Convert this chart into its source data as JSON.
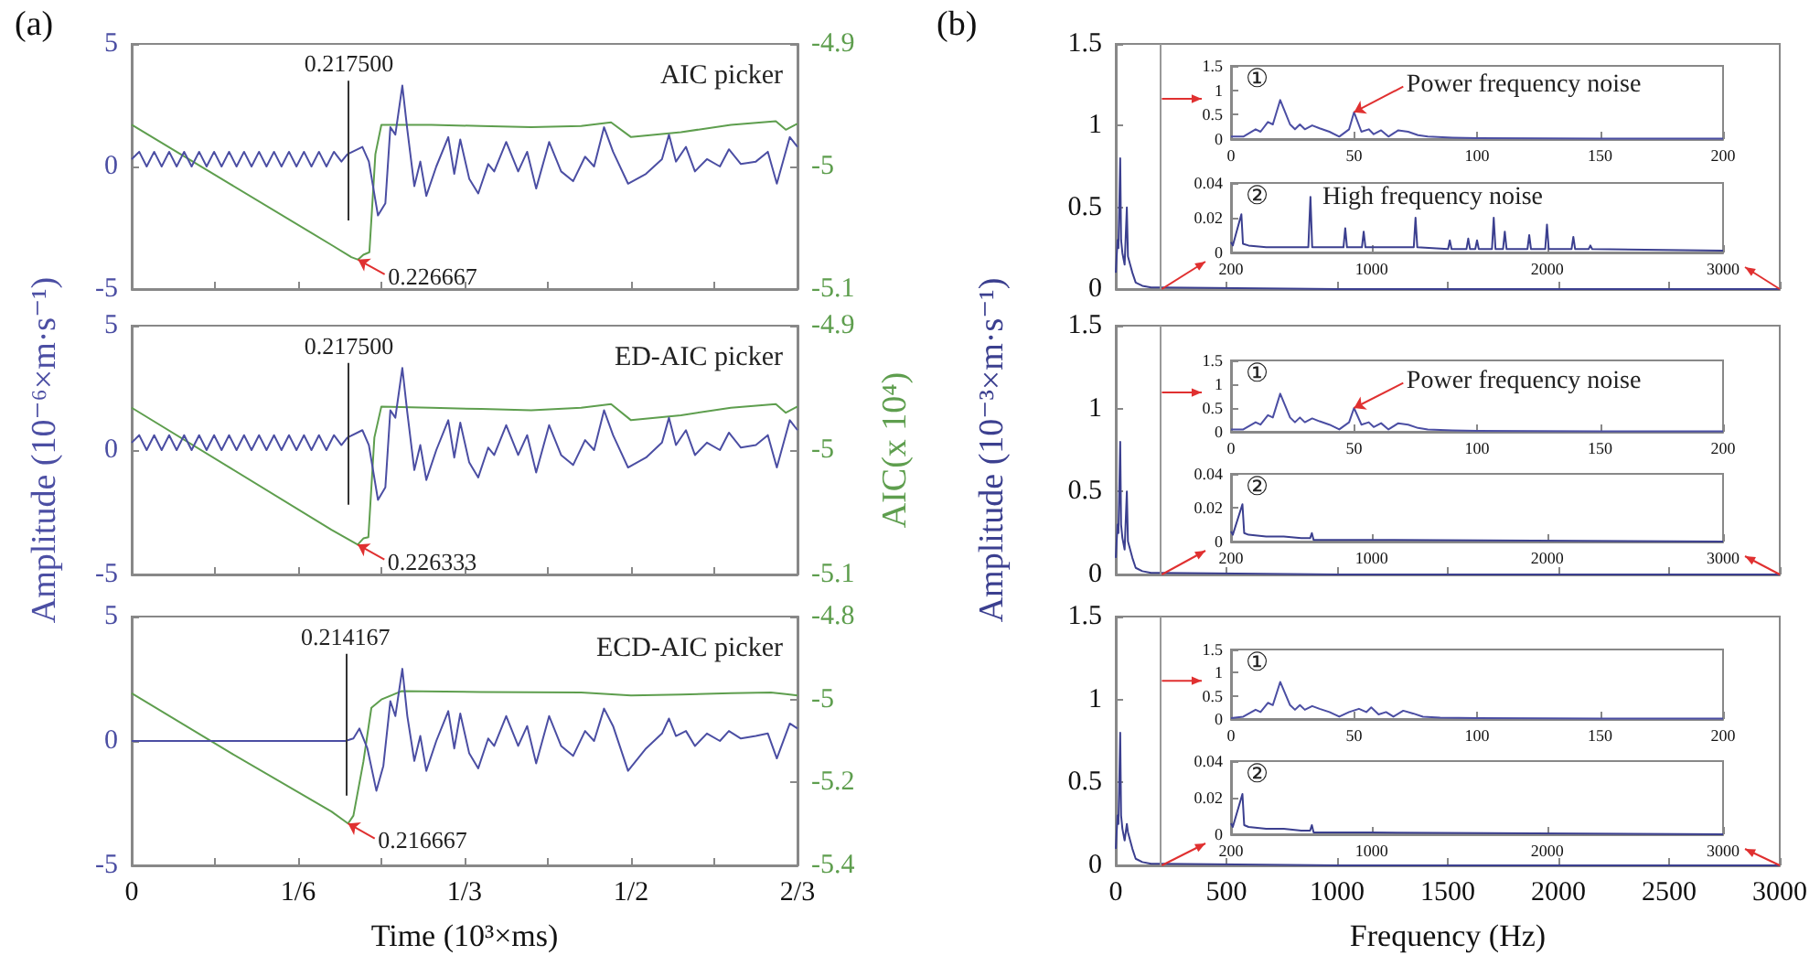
{
  "chart_data": [
    {
      "type": "line",
      "title": "(a)",
      "marker": "none",
      "tick_labels": "y",
      "series": [
        {
          "color": "#4b4ea3",
          "x": [
            0,
            0.0075,
            0.015,
            0.0225,
            0.03,
            0.0375,
            0.045,
            0.0525,
            0.06,
            0.0675,
            0.075,
            0.0825,
            0.09,
            0.0975,
            0.105,
            0.1125,
            0.12,
            0.1275,
            0.135,
            0.1425,
            0.15,
            0.1575,
            0.165,
            0.1725,
            0.18,
            0.1875,
            0.195,
            0.2025,
            0.21,
            0.216,
            0.231,
            0.2375,
            0.2466,
            0.254,
            0.259,
            0.264,
            0.271,
            0.276,
            0.283,
            0.289,
            0.295,
            0.305,
            0.317,
            0.323,
            0.329,
            0.338,
            0.347,
            0.357,
            0.363,
            0.375,
            0.387,
            0.396,
            0.405,
            0.418,
            0.43,
            0.442,
            0.454,
            0.463,
            0.473,
            0.482,
            0.497,
            0.515,
            0.531,
            0.538,
            0.545,
            0.555,
            0.564,
            0.576,
            0.589,
            0.598,
            0.61,
            0.625,
            0.637,
            0.646,
            0.659,
            0.6667
          ],
          "values": [
            0.3,
            0.6,
            0,
            0.6,
            0,
            0.6,
            0,
            0.6,
            0,
            0.6,
            0,
            0.6,
            0,
            0.6,
            0,
            0.6,
            0,
            0.6,
            0,
            0.6,
            0,
            0.6,
            0,
            0.6,
            0,
            0.6,
            0,
            0.6,
            0.2,
            0.5,
            0.8,
            0.2,
            -2.0,
            -1.5,
            1.6,
            1.3,
            3.3,
            1.5,
            -0.8,
            0.2,
            -1.2,
            0,
            1.2,
            -0.3,
            1.1,
            -0.5,
            -1.1,
            0.1,
            -0.2,
            1.0,
            -0.2,
            0.6,
            -0.9,
            1.0,
            -0.2,
            -0.6,
            0.4,
            0,
            1.6,
            0.6,
            -0.7,
            -0.3,
            0.3,
            1.3,
            0.2,
            0.8,
            -0.2,
            0.3,
            0,
            0.7,
            0.1,
            0.2,
            0.6,
            -0.7,
            1.2,
            0.8
          ]
        },
        {
          "color": "#5e9e4e",
          "axis": "y2",
          "x": [
            0,
            0.1,
            0.2,
            0.22,
            0.226667,
            0.232,
            0.238,
            0.244,
            0.25,
            0.3,
            0.35,
            0.4,
            0.45,
            0.48,
            0.5,
            0.55,
            0.6,
            0.645,
            0.655,
            0.6667
          ],
          "values": [
            -4.966,
            -5.015,
            -5.064,
            -5.074,
            -5.076,
            -5.072,
            -5.07,
            -4.99,
            -4.966,
            -4.966,
            -4.967,
            -4.968,
            -4.967,
            -4.964,
            -4.976,
            -4.972,
            -4.966,
            -4.963,
            -4.97,
            -4.965
          ]
        }
      ],
      "xlim": [
        0,
        0.6667
      ],
      "xticks": [
        0,
        0.0833,
        0.1667,
        0.25,
        0.3333,
        0.4167,
        0.5,
        0.5833,
        0.6667
      ],
      "ylim": [
        -5,
        5
      ],
      "yticks": [
        -5,
        0,
        5
      ],
      "y2lim": [
        -5.1,
        -4.9
      ],
      "y2ticks": [
        -5.1,
        -5,
        -4.9
      ],
      "ref_lines": [
        {
          "axis": "x",
          "value": 0.2175,
          "label": "0.217500",
          "color": "#333333"
        }
      ],
      "annotations": [
        "AIC picker",
        "0.226667"
      ]
    },
    {
      "type": "line",
      "marker": "none",
      "tick_labels": "y",
      "ylabel": "Amplitude (10⁻⁶×m·s⁻¹)",
      "y2label": "AIC(x 10⁴)",
      "series": [
        {
          "color": "#4b4ea3",
          "x": [
            0,
            0.0075,
            0.015,
            0.0225,
            0.03,
            0.0375,
            0.045,
            0.0525,
            0.06,
            0.0675,
            0.075,
            0.0825,
            0.09,
            0.0975,
            0.105,
            0.1125,
            0.12,
            0.1275,
            0.135,
            0.1425,
            0.15,
            0.1575,
            0.165,
            0.1725,
            0.18,
            0.1875,
            0.195,
            0.2025,
            0.21,
            0.216,
            0.231,
            0.2375,
            0.2466,
            0.254,
            0.259,
            0.264,
            0.271,
            0.276,
            0.283,
            0.289,
            0.295,
            0.305,
            0.317,
            0.323,
            0.329,
            0.338,
            0.347,
            0.357,
            0.363,
            0.375,
            0.387,
            0.396,
            0.405,
            0.418,
            0.43,
            0.442,
            0.454,
            0.463,
            0.473,
            0.482,
            0.497,
            0.515,
            0.531,
            0.538,
            0.545,
            0.555,
            0.564,
            0.576,
            0.589,
            0.598,
            0.61,
            0.625,
            0.637,
            0.646,
            0.659,
            0.6667
          ],
          "values": [
            0.3,
            0.6,
            0,
            0.6,
            0,
            0.6,
            0,
            0.6,
            0,
            0.6,
            0,
            0.6,
            0,
            0.6,
            0,
            0.6,
            0,
            0.6,
            0,
            0.6,
            0,
            0.6,
            0,
            0.6,
            0,
            0.6,
            0,
            0.6,
            0.2,
            0.5,
            0.8,
            0.2,
            -2.0,
            -1.5,
            1.6,
            1.3,
            3.3,
            1.5,
            -0.8,
            0.2,
            -1.2,
            0,
            1.2,
            -0.3,
            1.1,
            -0.5,
            -1.1,
            0.1,
            -0.2,
            1.0,
            -0.2,
            0.6,
            -0.9,
            1.0,
            -0.2,
            -0.6,
            0.4,
            0,
            1.6,
            0.6,
            -0.7,
            -0.3,
            0.3,
            1.3,
            0.2,
            0.8,
            -0.2,
            0.3,
            0,
            0.7,
            0.1,
            0.2,
            0.6,
            -0.7,
            1.2,
            0.8
          ]
        },
        {
          "color": "#5e9e4e",
          "axis": "y2",
          "x": [
            0,
            0.1,
            0.2,
            0.226333,
            0.232,
            0.237,
            0.243,
            0.25,
            0.3,
            0.35,
            0.4,
            0.45,
            0.48,
            0.5,
            0.55,
            0.6,
            0.645,
            0.655,
            0.6667
          ],
          "values": [
            -4.966,
            -5.015,
            -5.064,
            -5.076,
            -5.071,
            -5.07,
            -4.99,
            -4.965,
            -4.966,
            -4.967,
            -4.968,
            -4.966,
            -4.963,
            -4.976,
            -4.972,
            -4.966,
            -4.963,
            -4.97,
            -4.965
          ]
        }
      ],
      "xlim": [
        0,
        0.6667
      ],
      "xticks": [
        0,
        0.0833,
        0.1667,
        0.25,
        0.3333,
        0.4167,
        0.5,
        0.5833,
        0.6667
      ],
      "ylim": [
        -5,
        5
      ],
      "yticks": [
        -5,
        0,
        5
      ],
      "y2lim": [
        -5.1,
        -4.9
      ],
      "y2ticks": [
        -5.1,
        -5,
        -4.9
      ],
      "ref_lines": [
        {
          "axis": "x",
          "value": 0.2175,
          "label": "0.217500",
          "color": "#333333"
        }
      ],
      "annotations": [
        "ED-AIC picker",
        "0.226333"
      ]
    },
    {
      "type": "line",
      "marker": "none",
      "xlabel": "Time (10³×ms)",
      "series": [
        {
          "color": "#4b4ea3",
          "x": [
            0,
            0.1,
            0.205,
            0.214,
            0.222,
            0.228,
            0.236,
            0.245,
            0.252,
            0.259,
            0.264,
            0.271,
            0.276,
            0.283,
            0.289,
            0.295,
            0.305,
            0.317,
            0.323,
            0.329,
            0.338,
            0.347,
            0.357,
            0.363,
            0.375,
            0.387,
            0.396,
            0.405,
            0.418,
            0.43,
            0.442,
            0.454,
            0.463,
            0.473,
            0.482,
            0.497,
            0.515,
            0.531,
            0.538,
            0.545,
            0.555,
            0.564,
            0.576,
            0.589,
            0.598,
            0.61,
            0.625,
            0.637,
            0.646,
            0.659,
            0.6667
          ],
          "values": [
            0,
            0,
            0,
            0,
            0.1,
            0.5,
            -0.3,
            -2.0,
            -1.0,
            1.6,
            1.0,
            2.9,
            1.0,
            -0.8,
            0.2,
            -1.2,
            0,
            1.2,
            -0.3,
            1.1,
            -0.5,
            -1.1,
            0.1,
            -0.2,
            1.0,
            -0.2,
            0.6,
            -0.9,
            1.0,
            -0.2,
            -0.6,
            0.4,
            0,
            1.3,
            0.6,
            -1.2,
            -0.3,
            0.3,
            0.9,
            0.2,
            0.4,
            -0.2,
            0.3,
            0,
            0.4,
            0.1,
            0.2,
            0.3,
            -0.7,
            0.7,
            0.5
          ]
        },
        {
          "color": "#5e9e4e",
          "axis": "y2",
          "x": [
            0,
            0.1,
            0.2,
            0.216667,
            0.222,
            0.232,
            0.24,
            0.25,
            0.27,
            0.35,
            0.45,
            0.5,
            0.55,
            0.6,
            0.64,
            0.655,
            0.6667
          ],
          "values": [
            -4.985,
            -5.13,
            -5.27,
            -5.299,
            -5.28,
            -5.15,
            -5.02,
            -5.0,
            -4.98,
            -4.982,
            -4.983,
            -4.99,
            -4.988,
            -4.985,
            -4.983,
            -4.987,
            -4.99
          ]
        }
      ],
      "xlim": [
        0,
        0.6667
      ],
      "xticks": [
        0,
        {
          "value": 0.0833,
          "label": null
        },
        {
          "value": 0.1667,
          "label": "1/6"
        },
        {
          "value": 0.25,
          "label": null
        },
        {
          "value": 0.3333,
          "label": "1/3"
        },
        {
          "value": 0.4167,
          "label": null
        },
        {
          "value": 0.5,
          "label": "1/2"
        },
        {
          "value": 0.5833,
          "label": null
        },
        {
          "value": 0.6667,
          "label": "2/3"
        }
      ],
      "ylim": [
        -5,
        5
      ],
      "yticks": [
        -5,
        0,
        5
      ],
      "y2lim": [
        -5.4,
        -4.8
      ],
      "y2ticks": [
        -5.4,
        -5.2,
        -5,
        -4.8
      ],
      "ref_lines": [
        {
          "axis": "x",
          "value": 0.214167,
          "label": "0.214167",
          "color": "#333333"
        }
      ],
      "annotations": [
        "ECD-AIC picker",
        "0.216667"
      ]
    },
    {
      "type": "line",
      "title": "(b)",
      "marker": "none",
      "tick_labels": "y",
      "series": [
        {
          "color": "#3b3f8f",
          "x": [
            0,
            8,
            12,
            20,
            24,
            30,
            40,
            50,
            55,
            65,
            75,
            90,
            120,
            160,
            200,
            1000,
            3000
          ],
          "values": [
            0.1,
            0.3,
            0.25,
            0.8,
            0.3,
            0.22,
            0.15,
            0.5,
            0.2,
            0.15,
            0.1,
            0.04,
            0.02,
            0.01,
            0.01,
            0,
            0
          ]
        }
      ],
      "xlim": [
        0,
        3000
      ],
      "xticks": [
        0,
        500,
        1000,
        1500,
        2000,
        2500,
        3000
      ],
      "ylim": [
        0,
        1.5
      ],
      "yticks": [
        0,
        0.5,
        1,
        1.5
      ],
      "ref_lines": [
        {
          "axis": "x",
          "value": 200,
          "color": "#999999"
        }
      ]
    },
    {
      "type": "line",
      "marker": "none",
      "series": [
        {
          "color": "#4b4ea3",
          "x": [
            0,
            5,
            10,
            12,
            15,
            17,
            20,
            22,
            24,
            26,
            28,
            30,
            33,
            36,
            40,
            44,
            48,
            50,
            53,
            56,
            58,
            61,
            64,
            68,
            72,
            76,
            80,
            90,
            100,
            150,
            200
          ],
          "values": [
            0.05,
            0.05,
            0.2,
            0.15,
            0.35,
            0.3,
            0.8,
            0.55,
            0.3,
            0.2,
            0.3,
            0.2,
            0.28,
            0.22,
            0.15,
            0.05,
            0.2,
            0.55,
            0.15,
            0.2,
            0.1,
            0.18,
            0.05,
            0.18,
            0.15,
            0.08,
            0.05,
            0.03,
            0.02,
            0.01,
            0.01
          ]
        }
      ],
      "xlim": [
        0,
        200
      ],
      "xticks": [
        0,
        50,
        100,
        150,
        200
      ],
      "ylim": [
        0,
        1.5
      ],
      "yticks": [
        0,
        0.5,
        1,
        1.5
      ],
      "annotations": [
        "①",
        {
          "text": "Power frequency noise",
          "x": 50,
          "y": 0.55
        }
      ]
    },
    {
      "type": "line",
      "marker": "none",
      "series": [
        {
          "color": "#3b3f8f",
          "x": [
            200,
            210,
            259,
            268,
            300,
            400,
            640,
            652,
            662,
            840,
            850,
            860,
            945,
            955,
            965,
            1240,
            1250,
            1260,
            1435,
            1445,
            1455,
            1540,
            1550,
            1560,
            1590,
            1600,
            1610,
            1685,
            1695,
            1705,
            1748,
            1758,
            1768,
            1887,
            1897,
            1907,
            1988,
            1998,
            2008,
            2138,
            2148,
            2158,
            2235,
            2245,
            2255,
            3000
          ],
          "values": [
            0.006,
            0.004,
            0.022,
            0.005,
            0.004,
            0.003,
            0.003,
            0.032,
            0.003,
            0.003,
            0.014,
            0.003,
            0.003,
            0.012,
            0.003,
            0.003,
            0.02,
            0.003,
            0.002,
            0.007,
            0.002,
            0.002,
            0.008,
            0.002,
            0.002,
            0.007,
            0.002,
            0.002,
            0.02,
            0.002,
            0.002,
            0.012,
            0.002,
            0.002,
            0.01,
            0.002,
            0.002,
            0.016,
            0.002,
            0.002,
            0.009,
            0.002,
            0.002,
            0.004,
            0.002,
            0.001
          ]
        }
      ],
      "xlim": [
        200,
        3000
      ],
      "xticks": [
        200,
        1000,
        2000,
        3000
      ],
      "ylim": [
        0,
        0.04
      ],
      "yticks": [
        0,
        0.02,
        0.04
      ],
      "annotations": [
        "②",
        "High frequency noise"
      ]
    },
    {
      "type": "line",
      "marker": "none",
      "tick_labels": "y",
      "ylabel": "Amplitude (10⁻³×m·s⁻¹)",
      "series": [
        {
          "color": "#3b3f8f",
          "x": [
            0,
            8,
            12,
            20,
            24,
            30,
            40,
            50,
            55,
            65,
            75,
            90,
            120,
            160,
            200,
            1000,
            3000
          ],
          "values": [
            0.1,
            0.3,
            0.25,
            0.8,
            0.3,
            0.22,
            0.15,
            0.5,
            0.2,
            0.15,
            0.1,
            0.04,
            0.02,
            0.01,
            0.01,
            0,
            0
          ]
        }
      ],
      "xlim": [
        0,
        3000
      ],
      "xticks": [
        0,
        500,
        1000,
        1500,
        2000,
        2500,
        3000
      ],
      "ylim": [
        0,
        1.5
      ],
      "yticks": [
        0,
        0.5,
        1,
        1.5
      ],
      "ref_lines": [
        {
          "axis": "x",
          "value": 200,
          "color": "#999999"
        }
      ]
    },
    {
      "type": "line",
      "marker": "none",
      "series": [
        {
          "color": "#4b4ea3",
          "x": [
            0,
            5,
            10,
            12,
            15,
            17,
            20,
            22,
            24,
            26,
            28,
            30,
            33,
            36,
            40,
            44,
            48,
            50,
            53,
            56,
            58,
            61,
            64,
            68,
            72,
            76,
            80,
            90,
            100,
            150,
            200
          ],
          "values": [
            0.05,
            0.05,
            0.2,
            0.15,
            0.35,
            0.3,
            0.8,
            0.55,
            0.3,
            0.2,
            0.3,
            0.2,
            0.28,
            0.22,
            0.15,
            0.05,
            0.2,
            0.5,
            0.15,
            0.2,
            0.1,
            0.18,
            0.05,
            0.18,
            0.15,
            0.08,
            0.05,
            0.03,
            0.02,
            0.01,
            0.01
          ]
        }
      ],
      "xlim": [
        0,
        200
      ],
      "xticks": [
        0,
        50,
        100,
        150,
        200
      ],
      "ylim": [
        0,
        1.5
      ],
      "yticks": [
        0,
        0.5,
        1,
        1.5
      ],
      "annotations": [
        "①",
        {
          "text": "Power frequency noise",
          "x": 50,
          "y": 0.5
        }
      ]
    },
    {
      "type": "line",
      "marker": "none",
      "series": [
        {
          "color": "#3b3f8f",
          "x": [
            200,
            210,
            265,
            275,
            300,
            400,
            500,
            600,
            650,
            660,
            670,
            1000,
            3000
          ],
          "values": [
            0.006,
            0.004,
            0.022,
            0.005,
            0.004,
            0.003,
            0.003,
            0.002,
            0.002,
            0.005,
            0.001,
            0.001,
            0
          ]
        }
      ],
      "xlim": [
        200,
        3000
      ],
      "xticks": [
        200,
        1000,
        2000,
        3000
      ],
      "ylim": [
        0,
        0.04
      ],
      "yticks": [
        0,
        0.02,
        0.04
      ],
      "annotations": [
        "②"
      ]
    },
    {
      "type": "line",
      "marker": "none",
      "xlabel": "Frequency (Hz)",
      "series": [
        {
          "color": "#3b3f8f",
          "x": [
            0,
            8,
            12,
            20,
            24,
            30,
            40,
            50,
            55,
            65,
            75,
            90,
            120,
            160,
            200,
            1000,
            3000
          ],
          "values": [
            0.1,
            0.3,
            0.25,
            0.8,
            0.3,
            0.22,
            0.15,
            0.25,
            0.2,
            0.15,
            0.1,
            0.04,
            0.02,
            0.01,
            0.01,
            0,
            0
          ]
        }
      ],
      "xlim": [
        0,
        3000
      ],
      "xticks": [
        0,
        500,
        1000,
        1500,
        2000,
        2500,
        3000
      ],
      "ylim": [
        0,
        1.5
      ],
      "yticks": [
        0,
        0.5,
        1,
        1.5
      ],
      "ref_lines": [
        {
          "axis": "x",
          "value": 200,
          "color": "#999999"
        }
      ]
    },
    {
      "type": "line",
      "marker": "none",
      "series": [
        {
          "color": "#4b4ea3",
          "x": [
            0,
            5,
            10,
            12,
            15,
            17,
            20,
            22,
            24,
            26,
            28,
            30,
            33,
            36,
            40,
            44,
            48,
            52,
            55,
            57,
            60,
            63,
            66,
            70,
            74,
            78,
            85,
            100,
            150,
            200
          ],
          "values": [
            0.02,
            0.05,
            0.2,
            0.15,
            0.35,
            0.3,
            0.8,
            0.55,
            0.3,
            0.2,
            0.3,
            0.2,
            0.28,
            0.22,
            0.15,
            0.05,
            0.15,
            0.22,
            0.15,
            0.25,
            0.1,
            0.15,
            0.05,
            0.18,
            0.12,
            0.05,
            0.03,
            0.02,
            0.01,
            0.01
          ]
        }
      ],
      "xlim": [
        0,
        200
      ],
      "xticks": [
        0,
        50,
        100,
        150,
        200
      ],
      "ylim": [
        0,
        1.5
      ],
      "yticks": [
        0,
        0.5,
        1,
        1.5
      ],
      "annotations": [
        "①"
      ]
    },
    {
      "type": "line",
      "marker": "none",
      "series": [
        {
          "color": "#3b3f8f",
          "x": [
            200,
            210,
            265,
            275,
            300,
            400,
            500,
            600,
            650,
            660,
            670,
            1000,
            3000
          ],
          "values": [
            0.006,
            0.004,
            0.022,
            0.005,
            0.004,
            0.003,
            0.003,
            0.002,
            0.002,
            0.005,
            0.001,
            0.001,
            0
          ]
        }
      ],
      "xlim": [
        200,
        3000
      ],
      "xticks": [
        200,
        1000,
        2000,
        3000
      ],
      "ylim": [
        0,
        0.04
      ],
      "yticks": [
        0,
        0.02,
        0.04
      ],
      "annotations": [
        "②"
      ]
    }
  ]
}
